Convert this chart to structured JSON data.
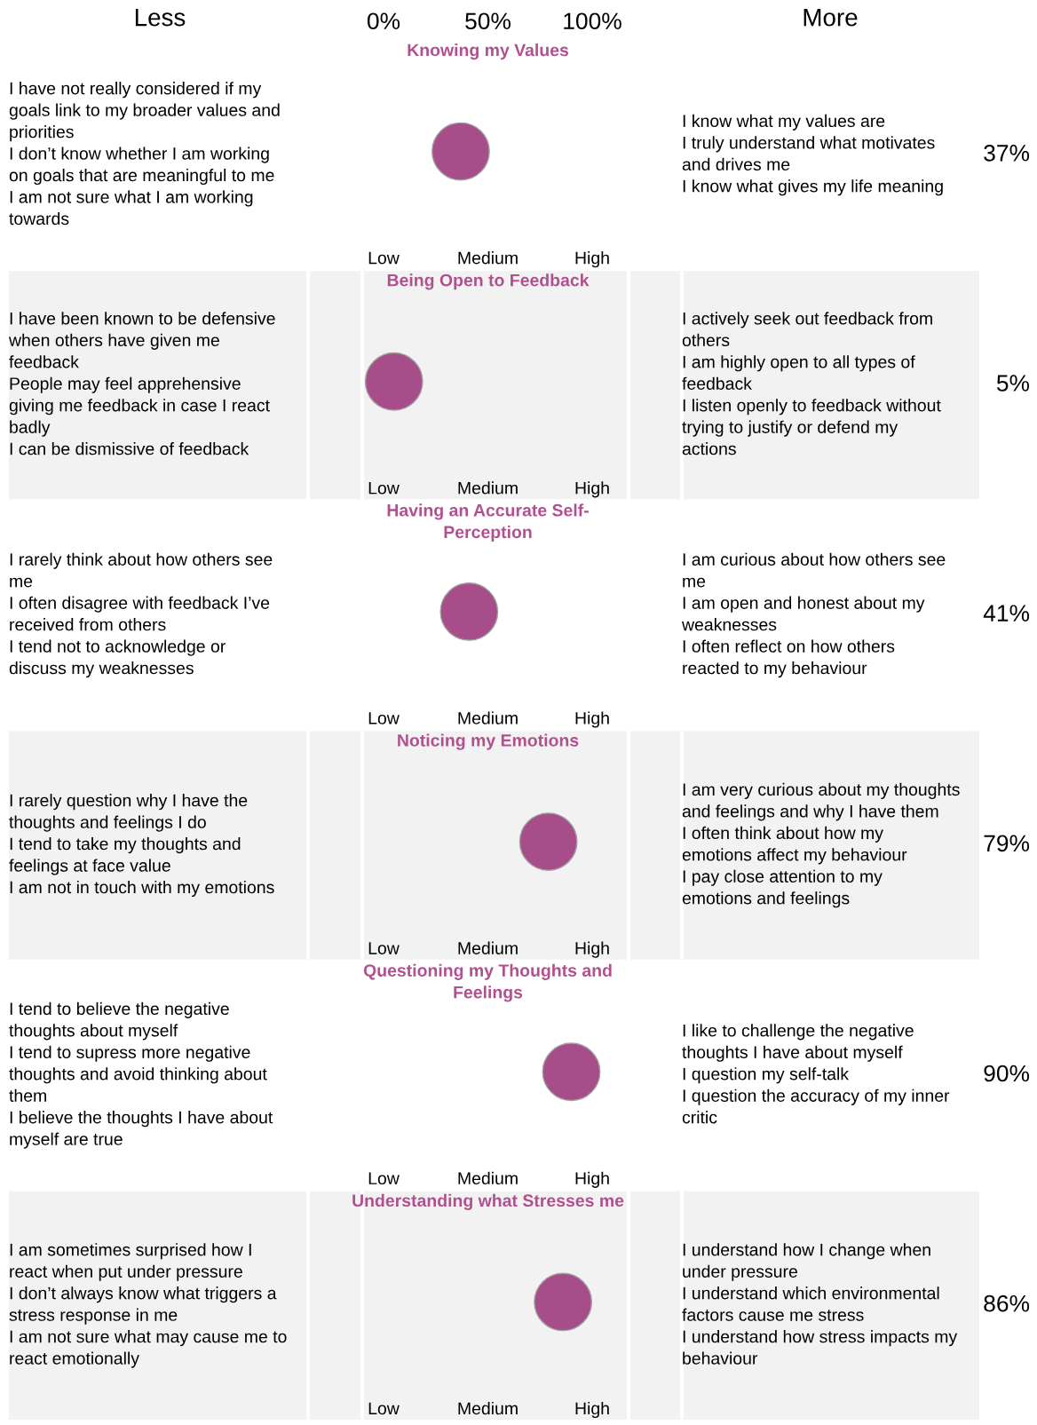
{
  "chart_data": [
    {
      "type": "other",
      "title": "Knowing my Values",
      "values": [
        37
      ],
      "value_labels": [
        "37%"
      ],
      "color": "#a64d8a",
      "annotations": [
        "I have not really considered if my\ngoals link to my broader values and\npriorities\nI don’t know whether I am working\non goals that are meaningful to me\nI am not sure what I am working\ntowards",
        "I know what my values are\nI truly understand what motivates\nand drives me\nI know what gives my life meaning",
        "Low",
        "Medium",
        "High",
        "Less",
        "More",
        "0%",
        "50%",
        "100%"
      ]
    },
    {
      "type": "other",
      "title": "Being Open to Feedback",
      "values": [
        5
      ],
      "value_labels": [
        "5%"
      ],
      "color": "#a64d8a",
      "annotations": [
        "I have been known to be defensive\nwhen others have given me\nfeedback\nPeople may feel apprehensive\ngiving me feedback in case I react\nbadly\nI can be dismissive of feedback",
        "I actively seek out feedback from\nothers\nI am highly open to all types of\nfeedback\nI listen openly to feedback without\ntrying to justify or defend my\nactions",
        "Low",
        "Medium",
        "High"
      ]
    },
    {
      "type": "other",
      "title": "Having an Accurate Self-\nPerception",
      "values": [
        41
      ],
      "value_labels": [
        "41%"
      ],
      "color": "#a64d8a",
      "annotations": [
        "I rarely think about how others see\nme\nI often disagree with feedback I’ve\nreceived from others\nI tend not to acknowledge or\ndiscuss my weaknesses",
        "I am curious about how others see\nme\nI am open and honest about my\nweaknesses\nI often reflect on how others\nreacted to my behaviour",
        "Low",
        "Medium",
        "High"
      ]
    },
    {
      "type": "other",
      "title": "Noticing my Emotions",
      "values": [
        79
      ],
      "value_labels": [
        "79%"
      ],
      "color": "#a64d8a",
      "annotations": [
        "I rarely question why I have the\nthoughts and feelings I do\nI tend to take my thoughts and\nfeelings at face value\nI am not in touch with my emotions",
        "I am very curious about my thoughts\nand feelings and why I have them\nI often think about how my\nemotions affect my behaviour\nI pay close attention to my\nemotions and feelings",
        "Low",
        "Medium",
        "High"
      ]
    },
    {
      "type": "other",
      "title": "Questioning my Thoughts and\nFeelings",
      "values": [
        90
      ],
      "value_labels": [
        "90%"
      ],
      "color": "#a64d8a",
      "annotations": [
        "I tend to believe the negative\nthoughts about myself\nI tend to supress more negative\nthoughts and avoid thinking about\nthem\nI believe the thoughts I have about\nmyself are true",
        "I like to challenge the negative\nthoughts I have about myself\nI question my self-talk\nI question the accuracy of my inner\ncritic",
        "Low",
        "Medium",
        "High"
      ]
    },
    {
      "type": "other",
      "title": "Understanding what Stresses me",
      "values": [
        86
      ],
      "value_labels": [
        "86%"
      ],
      "color": "#a64d8a",
      "annotations": [
        "I am sometimes surprised how I\nreact when put under pressure\nI don’t always know what triggers a\nstress response in me\nI am not sure what may cause me to\nreact emotionally",
        "I understand how I change when\nunder pressure\nI understand which environmental\nfactors cause me stress\nI understand how stress impacts my\nbehaviour",
        "Low",
        "Medium",
        "High"
      ]
    }
  ]
}
